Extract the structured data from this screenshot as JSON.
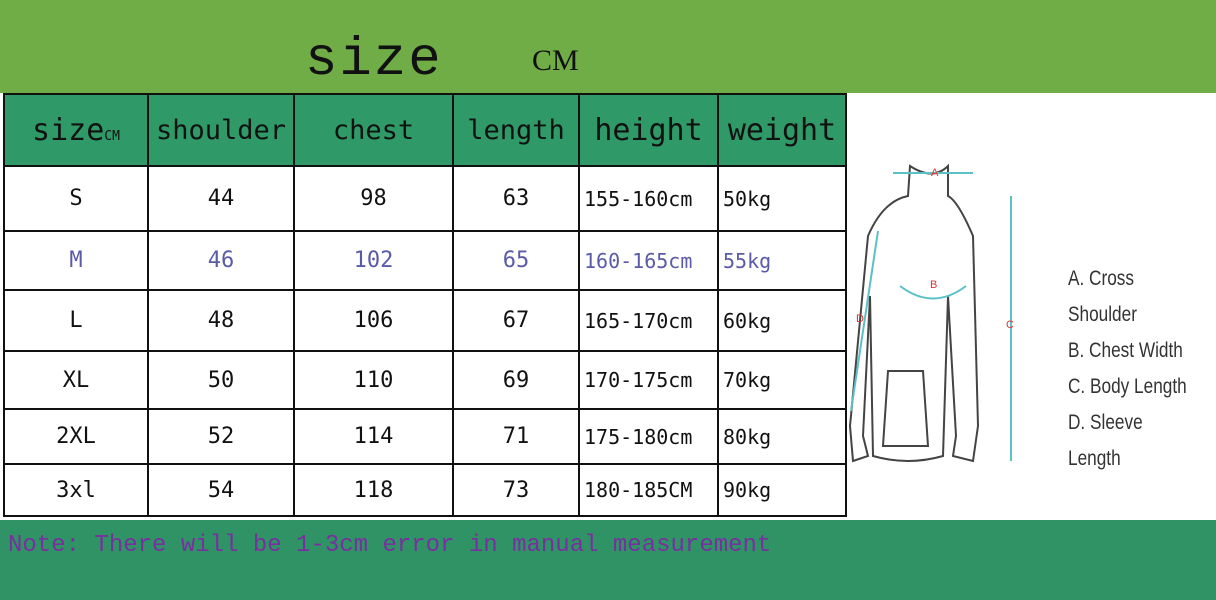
{
  "title": "size",
  "unit": "CM",
  "table": {
    "headers": [
      "size",
      "shoulder",
      "chest",
      "length",
      "height",
      "weight"
    ],
    "header_unit": "CM",
    "rows": [
      [
        "S",
        "44",
        "98",
        "63",
        "155-160cm",
        "50kg"
      ],
      [
        "M",
        "46",
        "102",
        "65",
        "160-165cm",
        "55kg"
      ],
      [
        "L",
        "48",
        "106",
        "67",
        "165-170cm",
        "60kg"
      ],
      [
        "XL",
        "50",
        "110",
        "69",
        "170-175cm",
        "70kg"
      ],
      [
        "2XL",
        "52",
        "114",
        "71",
        "175-180cm",
        "80kg"
      ],
      [
        "3xl",
        "54",
        "118",
        "73",
        "180-185CM",
        "90kg"
      ]
    ]
  },
  "diagram": {
    "markers": [
      "A",
      "B",
      "C",
      "D"
    ],
    "legend": [
      "A. Cross Shoulder",
      "B. Chest Width",
      "C. Body Length",
      "D. Sleeve Length"
    ]
  },
  "note": "Note: There will be 1-3cm error in manual measurement",
  "colors": {
    "top_band": "#70ad47",
    "header": "#2f9a68",
    "bottom_band": "#2f9366",
    "note_text": "#7a2fa0",
    "highlight_row_text": "#5b5aa8"
  }
}
